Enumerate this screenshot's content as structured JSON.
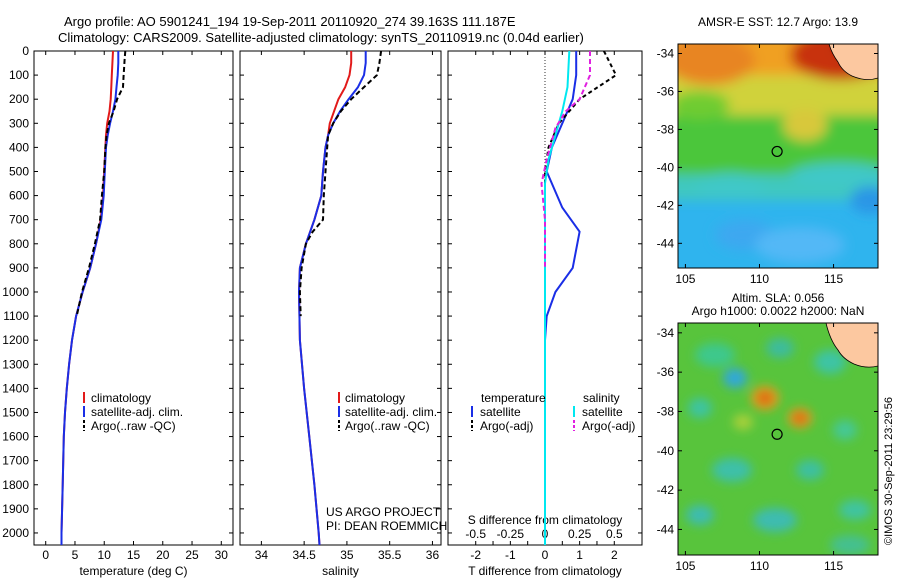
{
  "header": {
    "line1": "Argo profile: AO 5901241_194 19-Sep-2011 20110920_274 39.163S 111.187E",
    "line2": "Climatology: CARS2009. Satellite-adjusted climatology: synTS_20110919.nc (0.04d earlier)"
  },
  "side_label": "©IMOS 30-Sep-2011 23:29:56",
  "project": {
    "line1": "US ARGO PROJECT",
    "line2": "PI: DEAN ROEMMICH"
  },
  "colors": {
    "climatology": "#e21a1a",
    "satellite": "#1a2ee6",
    "argo": "#000000",
    "sal_sat": "#00e8f0",
    "sal_argo": "#e020e0"
  },
  "chart_data": [
    {
      "id": "temperature",
      "type": "line",
      "xlabel": "temperature (deg C)",
      "xlim": [
        -2,
        32
      ],
      "xticks": [
        0,
        5,
        10,
        15,
        20,
        25,
        30
      ],
      "ylim": [
        0,
        2050
      ],
      "yticks": [
        0,
        100,
        200,
        300,
        400,
        500,
        600,
        700,
        800,
        900,
        1000,
        1100,
        1200,
        1300,
        1400,
        1500,
        1600,
        1700,
        1800,
        1900,
        2000
      ],
      "legend": [
        "climatology",
        "satellite-adj. clim.",
        "Argo(..raw -QC)"
      ],
      "series": [
        {
          "name": "climatology",
          "color": "#e21a1a",
          "dash": "",
          "points": [
            [
              11.5,
              0
            ],
            [
              11.4,
              50
            ],
            [
              11.3,
              100
            ],
            [
              11.2,
              150
            ],
            [
              11.1,
              200
            ],
            [
              10.9,
              250
            ],
            [
              10.5,
              300
            ],
            [
              10.3,
              350
            ],
            [
              10.2,
              400
            ],
            [
              10.0,
              500
            ],
            [
              9.8,
              600
            ],
            [
              9.4,
              700
            ],
            [
              8.6,
              800
            ],
            [
              7.6,
              900
            ],
            [
              6.3,
              1000
            ],
            [
              5.2,
              1100
            ],
            [
              4.5,
              1200
            ],
            [
              4.0,
              1300
            ],
            [
              3.6,
              1400
            ],
            [
              3.3,
              1500
            ],
            [
              3.1,
              1600
            ],
            [
              2.9,
              1800
            ],
            [
              2.7,
              2000
            ],
            [
              2.7,
              2050
            ]
          ]
        },
        {
          "name": "satellite-adj. clim.",
          "color": "#1a2ee6",
          "dash": "",
          "points": [
            [
              12.4,
              0
            ],
            [
              12.4,
              50
            ],
            [
              12.3,
              100
            ],
            [
              12.1,
              150
            ],
            [
              11.9,
              200
            ],
            [
              11.5,
              250
            ],
            [
              11.0,
              300
            ],
            [
              10.6,
              350
            ],
            [
              10.3,
              400
            ],
            [
              10.1,
              500
            ],
            [
              9.9,
              600
            ],
            [
              9.5,
              700
            ],
            [
              8.6,
              800
            ],
            [
              7.6,
              900
            ],
            [
              6.3,
              1000
            ],
            [
              5.2,
              1100
            ],
            [
              4.5,
              1200
            ],
            [
              4.0,
              1300
            ],
            [
              3.6,
              1400
            ],
            [
              3.3,
              1500
            ],
            [
              3.1,
              1600
            ],
            [
              2.9,
              1800
            ],
            [
              2.7,
              2000
            ],
            [
              2.7,
              2050
            ]
          ]
        },
        {
          "name": "Argo(..raw -QC)",
          "color": "#000000",
          "dash": "5,3",
          "points": [
            [
              13.6,
              0
            ],
            [
              13.5,
              30
            ],
            [
              13.4,
              70
            ],
            [
              13.3,
              110
            ],
            [
              13.2,
              150
            ],
            [
              12.2,
              200
            ],
            [
              11.6,
              250
            ],
            [
              10.8,
              300
            ],
            [
              10.4,
              350
            ],
            [
              10.2,
              400
            ],
            [
              10.0,
              500
            ],
            [
              9.6,
              600
            ],
            [
              9.3,
              700
            ],
            [
              8.4,
              800
            ],
            [
              7.4,
              900
            ],
            [
              6.2,
              1000
            ],
            [
              5.3,
              1100
            ]
          ]
        }
      ]
    },
    {
      "id": "salinity",
      "type": "line",
      "xlabel": "salinity",
      "xlim": [
        33.75,
        36.1
      ],
      "xticks": [
        34,
        34.5,
        35,
        35.5,
        36
      ],
      "ylim": [
        0,
        2050
      ],
      "legend": [
        "climatology",
        "satellite-adj. clim.",
        "Argo(..raw -QC)"
      ],
      "series": [
        {
          "name": "climatology",
          "color": "#e21a1a",
          "dash": "",
          "points": [
            [
              35.05,
              0
            ],
            [
              35.05,
              50
            ],
            [
              35.03,
              100
            ],
            [
              34.98,
              150
            ],
            [
              34.9,
              200
            ],
            [
              34.85,
              250
            ],
            [
              34.8,
              300
            ],
            [
              34.78,
              350
            ],
            [
              34.75,
              400
            ],
            [
              34.72,
              500
            ],
            [
              34.7,
              600
            ],
            [
              34.62,
              700
            ],
            [
              34.52,
              800
            ],
            [
              34.45,
              900
            ],
            [
              34.44,
              1000
            ],
            [
              34.45,
              1200
            ],
            [
              34.5,
              1400
            ],
            [
              34.56,
              1600
            ],
            [
              34.62,
              1800
            ],
            [
              34.67,
              2000
            ],
            [
              34.68,
              2050
            ]
          ]
        },
        {
          "name": "satellite-adj. clim.",
          "color": "#1a2ee6",
          "dash": "",
          "points": [
            [
              35.22,
              0
            ],
            [
              35.22,
              50
            ],
            [
              35.2,
              100
            ],
            [
              35.13,
              150
            ],
            [
              35.02,
              200
            ],
            [
              34.92,
              250
            ],
            [
              34.84,
              300
            ],
            [
              34.78,
              350
            ],
            [
              34.75,
              400
            ],
            [
              34.72,
              500
            ],
            [
              34.7,
              600
            ],
            [
              34.62,
              700
            ],
            [
              34.52,
              800
            ],
            [
              34.45,
              900
            ],
            [
              34.44,
              1000
            ],
            [
              34.45,
              1200
            ],
            [
              34.5,
              1400
            ],
            [
              34.56,
              1600
            ],
            [
              34.62,
              1800
            ],
            [
              34.67,
              2000
            ],
            [
              34.68,
              2050
            ]
          ]
        },
        {
          "name": "Argo(..raw -QC)",
          "color": "#000000",
          "dash": "5,3",
          "points": [
            [
              35.4,
              0
            ],
            [
              35.38,
              50
            ],
            [
              35.35,
              100
            ],
            [
              35.2,
              150
            ],
            [
              35.05,
              200
            ],
            [
              34.93,
              250
            ],
            [
              34.84,
              300
            ],
            [
              34.78,
              350
            ],
            [
              34.77,
              400
            ],
            [
              34.75,
              500
            ],
            [
              34.73,
              600
            ],
            [
              34.72,
              700
            ],
            [
              34.6,
              750
            ],
            [
              34.52,
              800
            ],
            [
              34.47,
              900
            ],
            [
              34.45,
              1000
            ],
            [
              34.46,
              1100
            ]
          ]
        }
      ]
    },
    {
      "id": "difference",
      "type": "line",
      "xlabel": "T difference from climatology",
      "xlabel_top": "S difference from climatology",
      "xlim": [
        -2.8,
        2.8
      ],
      "xticks": [
        -2,
        -1.5,
        -1,
        -0.5,
        0,
        0.5,
        1,
        1.5,
        2
      ],
      "xticks_labels": [
        "-2",
        "-1.5",
        "-1",
        "-0.5",
        "0",
        "0.5",
        "1",
        "1.5",
        "2"
      ],
      "xticks_top": [
        -0.5,
        -0.25,
        0,
        0.25,
        0.5
      ],
      "xticks_top_labels": [
        "-0.5",
        "-0.25",
        "0",
        "0.25",
        "0.5"
      ],
      "ylim": [
        0,
        2050
      ],
      "legend_temp": {
        "title": "temperature",
        "items": [
          "satellite",
          "Argo(-adj)"
        ]
      },
      "legend_sal": {
        "title": "salinity",
        "items": [
          "satellite",
          "Argo(-adj)"
        ]
      },
      "series": [
        {
          "name": "temperature satellite",
          "color": "#1a2ee6",
          "dash": "",
          "points": [
            [
              0.9,
              0
            ],
            [
              0.9,
              100
            ],
            [
              0.8,
              200
            ],
            [
              0.5,
              300
            ],
            [
              0.2,
              400
            ],
            [
              0.05,
              500
            ],
            [
              0.5,
              650
            ],
            [
              1.0,
              750
            ],
            [
              0.8,
              900
            ],
            [
              0.3,
              1000
            ],
            [
              0.05,
              1100
            ],
            [
              0.0,
              1200
            ],
            [
              0.0,
              2050
            ]
          ]
        },
        {
          "name": "temperature Argo(-adj)",
          "color": "#000000",
          "dash": "4,3",
          "points": [
            [
              1.7,
              0
            ],
            [
              2.05,
              100
            ],
            [
              1.0,
              200
            ],
            [
              0.4,
              300
            ],
            [
              0.1,
              400
            ],
            [
              0.0,
              500
            ],
            [
              0.0,
              1000
            ]
          ]
        },
        {
          "name": "salinity satellite",
          "color": "#00e8f0",
          "dash": "",
          "points": [
            [
              0.7,
              0
            ],
            [
              0.65,
              150
            ],
            [
              0.5,
              250
            ],
            [
              0.3,
              350
            ],
            [
              0.1,
              450
            ],
            [
              0.0,
              550
            ],
            [
              0.0,
              2050
            ]
          ]
        },
        {
          "name": "salinity Argo(-adj)",
          "color": "#e020e0",
          "dash": "5,3",
          "points": [
            [
              1.3,
              0
            ],
            [
              1.3,
              100
            ],
            [
              1.0,
              200
            ],
            [
              0.6,
              250
            ],
            [
              0.3,
              320
            ],
            [
              0.05,
              450
            ],
            [
              -0.1,
              550
            ],
            [
              0.0,
              700
            ],
            [
              0.0,
              900
            ]
          ]
        }
      ]
    },
    {
      "id": "sst_map",
      "type": "heatmap",
      "title": "AMSR-E SST: 12.7 Argo: 13.9",
      "xticks": [
        105,
        110,
        115
      ],
      "yticks": [
        -34,
        -36,
        -38,
        -40,
        -42,
        -44
      ],
      "xlim": [
        104.5,
        118
      ],
      "ylim": [
        -45.3,
        -33.5
      ],
      "marker": [
        111.19,
        -39.16
      ]
    },
    {
      "id": "sla_map",
      "type": "heatmap",
      "title_line1": "Altim. SLA: 0.056",
      "title_line2": "Argo h1000: 0.0022 h2000: NaN",
      "xticks": [
        105,
        110,
        115
      ],
      "yticks": [
        -34,
        -36,
        -38,
        -40,
        -42,
        -44
      ],
      "xlim": [
        104.5,
        118
      ],
      "ylim": [
        -45.3,
        -33.5
      ],
      "marker": [
        111.19,
        -39.16
      ]
    }
  ]
}
